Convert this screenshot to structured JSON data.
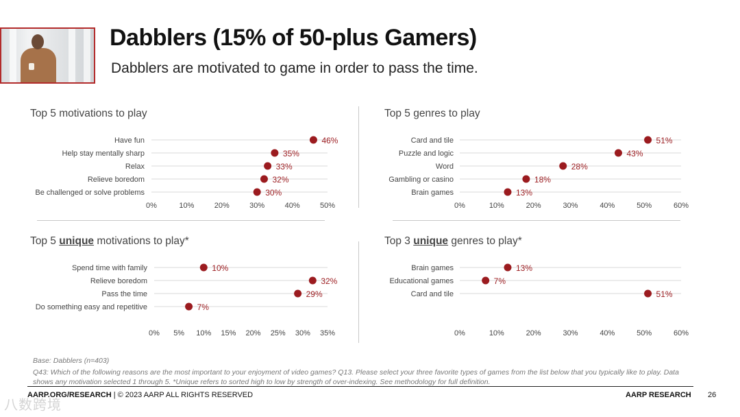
{
  "header": {
    "title": "Dabblers (15% of 50-plus Gamers)",
    "subtitle": "Dabblers are motivated to game in order to pass the time."
  },
  "panels": {
    "p1": {
      "title_pre": "Top 5 motivations to play",
      "title_u": "",
      "title_post": ""
    },
    "p2": {
      "title_pre": "Top 5 genres to play",
      "title_u": "",
      "title_post": ""
    },
    "p3": {
      "title_pre": "Top 5 ",
      "title_u": "unique",
      "title_post": " motivations to play*"
    },
    "p4": {
      "title_pre": "Top 3 ",
      "title_u": "unique",
      "title_post": " genres to play*"
    }
  },
  "chart_data": [
    {
      "id": "top5-motivations",
      "type": "dot",
      "categories": [
        "Have fun",
        "Help stay mentally sharp",
        "Relax",
        "Relieve boredom",
        "Be challenged or solve problems"
      ],
      "values": [
        46,
        35,
        33,
        32,
        30
      ],
      "ticks": [
        0,
        10,
        20,
        30,
        40,
        50
      ],
      "xlim": [
        0,
        50
      ],
      "value_suffix": "%"
    },
    {
      "id": "top5-genres",
      "type": "dot",
      "categories": [
        "Card and tile",
        "Puzzle and logic",
        "Word",
        "Gambling or casino",
        "Brain games"
      ],
      "values": [
        51,
        43,
        28,
        18,
        13
      ],
      "ticks": [
        0,
        10,
        20,
        30,
        40,
        50,
        60
      ],
      "xlim": [
        0,
        60
      ],
      "value_suffix": "%"
    },
    {
      "id": "unique-motivations",
      "type": "dot",
      "categories": [
        "Spend time with family",
        "Relieve boredom",
        "Pass the time",
        "Do something easy and repetitive"
      ],
      "values": [
        10,
        32,
        29,
        7
      ],
      "ticks": [
        0,
        5,
        10,
        15,
        20,
        25,
        30,
        35
      ],
      "xlim": [
        0,
        35
      ],
      "value_suffix": "%"
    },
    {
      "id": "unique-genres",
      "type": "dot",
      "categories": [
        "Brain games",
        "Educational games",
        "Card and tile"
      ],
      "values": [
        13,
        7,
        51
      ],
      "ticks": [
        0,
        10,
        20,
        30,
        40,
        50,
        60
      ],
      "xlim": [
        0,
        60
      ],
      "value_suffix": "%"
    }
  ],
  "notes": {
    "base": "Base: Dabblers (n=403)",
    "question": "Q43: Which of the following reasons are the most important to your enjoyment of video games?  Q13. Please select your three favorite types of games from the list below that you typically like to play. Data shows any motivation selected 1 through 5. *Unique refers to sorted high to low by strength of over-indexing. See methodology for full definition."
  },
  "footer": {
    "site": "AARP.ORG/RESEARCH",
    "rights": " | © 2023 AARP ALL RIGHTS RESERVED",
    "brand": "AARP RESEARCH",
    "page": "26",
    "watermark": "八数跨境"
  },
  "colors": {
    "dot": "#9b1b1f",
    "label": "#9b1b1f",
    "gridline": "#d9d9d9",
    "text": "#444444"
  }
}
